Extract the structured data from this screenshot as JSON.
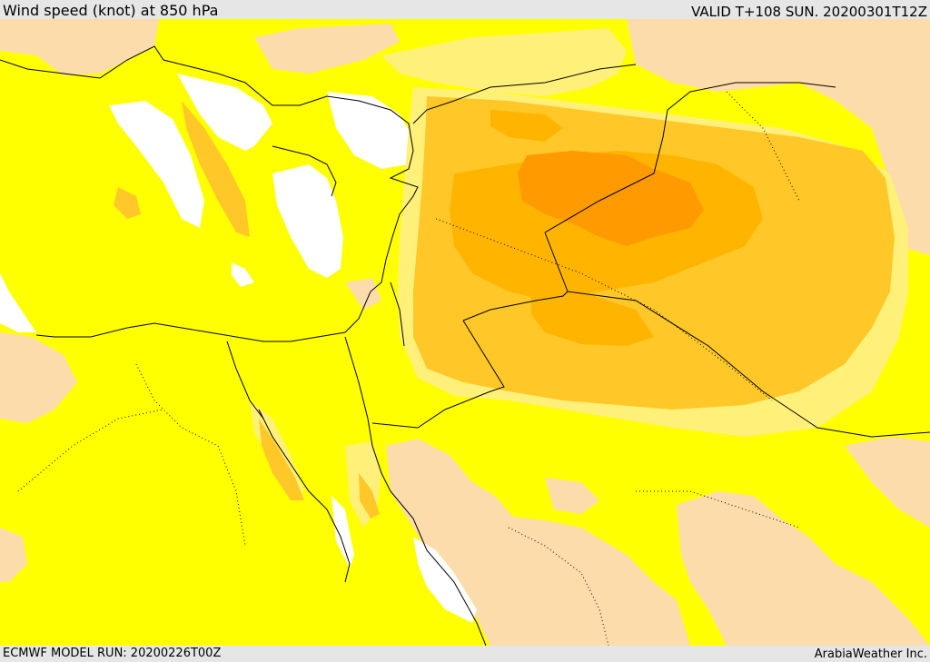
{
  "header": {
    "title": "Wind speed (knot) at 850 hPa",
    "valid_time": "VALID T+108 SUN. 20200301T12Z"
  },
  "footer": {
    "model_run": "ECMWF MODEL RUN: 20200226T00Z",
    "credit": "ArabiaWeather Inc."
  },
  "map": {
    "colors": {
      "calm_white": "#ffffff",
      "low_tan": "#fcdcaa",
      "yellow": "#ffff00",
      "light_gold": "#fff07a",
      "gold": "#ffd24a",
      "orange": "#ffbf00",
      "dark_orange": "#ffa000",
      "deep_orange": "#ff9500",
      "border": "#000000"
    }
  }
}
